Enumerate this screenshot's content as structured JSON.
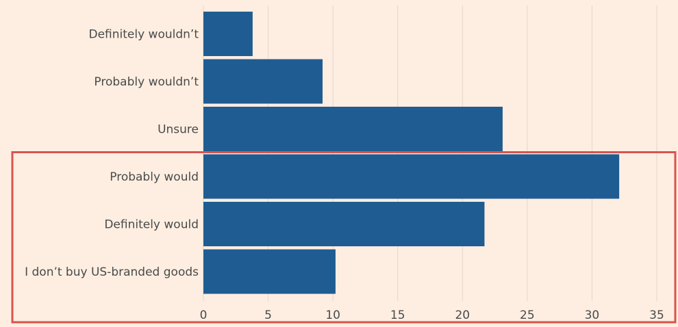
{
  "colors": {
    "background": "#fdeee1",
    "bar": "#1f5c92",
    "gridline": "#e3d6cc",
    "highlight_box": "#d9534f",
    "text": "#4a4a4a"
  },
  "chart_data": {
    "type": "bar",
    "orientation": "horizontal",
    "categories": [
      "Definitely wouldn’t",
      "Probably wouldn’t",
      "Unsure",
      "Probably would",
      "Definitely would",
      "I don’t buy US-branded goods"
    ],
    "values": [
      3.8,
      9.2,
      23.1,
      32.1,
      21.7,
      10.2
    ],
    "xticks": [
      "0",
      "5",
      "10",
      "15",
      "20",
      "25",
      "30",
      "35"
    ],
    "xlim": [
      0,
      35
    ],
    "title": "",
    "xlabel": "",
    "ylabel": "",
    "grid": "vertical",
    "highlight": {
      "categories": [
        "Probably would",
        "Definitely would",
        "I don’t buy US-branded goods"
      ]
    }
  }
}
